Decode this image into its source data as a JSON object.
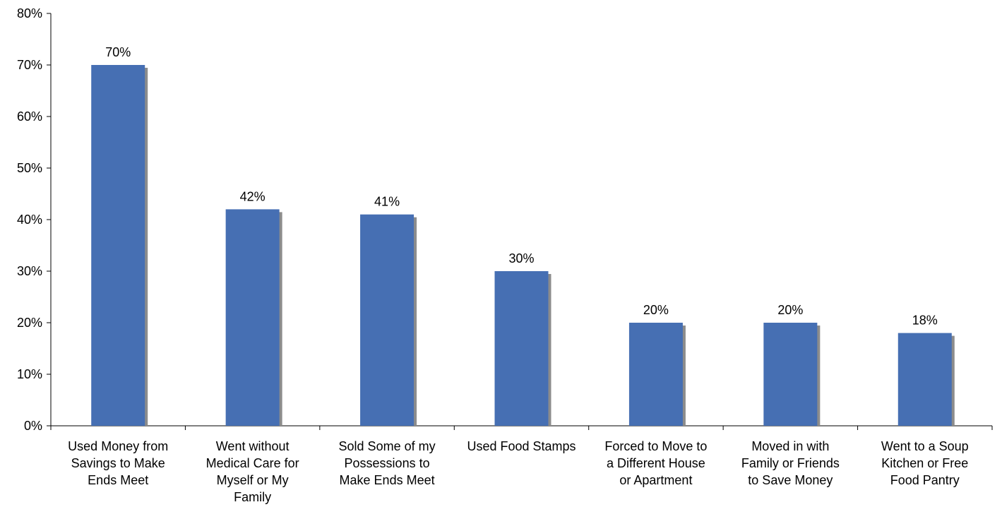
{
  "chart_data": {
    "type": "bar",
    "categories": [
      "Used Money from\nSavings to Make\nEnds Meet",
      "Went without\nMedical Care for\nMyself or My\nFamily",
      "Sold Some of my\nPossessions to\nMake Ends Meet",
      "Used Food Stamps",
      "Forced to Move to\na Different House\nor Apartment",
      "Moved in with\nFamily or Friends\nto Save Money",
      "Went to a Soup\nKitchen or Free\nFood Pantry"
    ],
    "values": [
      70,
      42,
      41,
      30,
      20,
      20,
      18
    ],
    "data_labels": [
      "70%",
      "42%",
      "41%",
      "30%",
      "20%",
      "20%",
      "18%"
    ],
    "y_ticks": [
      0,
      10,
      20,
      30,
      40,
      50,
      60,
      70,
      80
    ],
    "y_tick_labels": [
      "0%",
      "10%",
      "20%",
      "30%",
      "40%",
      "50%",
      "60%",
      "70%",
      "80%"
    ],
    "ylim": [
      0,
      80
    ],
    "grid": false,
    "legend": "none",
    "colors": {
      "bar": "#466fb3",
      "bar_shadow": "#8c8c8c",
      "axis": "#000000"
    }
  }
}
